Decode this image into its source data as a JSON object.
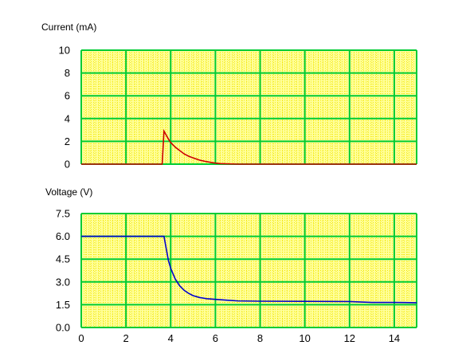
{
  "chart_data": [
    {
      "type": "line",
      "ylabel": "Current (mA)",
      "xlim": [
        0,
        15
      ],
      "ylim": [
        0,
        10
      ],
      "xticks": [
        0,
        2,
        4,
        6,
        8,
        10,
        12,
        14
      ],
      "yticks": [
        "0",
        "2",
        "4",
        "6",
        "8",
        "10"
      ],
      "grid": true,
      "series": [
        {
          "color": "#cc0000",
          "x": [
            0,
            3.62,
            3.7,
            3.8,
            3.9,
            4.0,
            4.2,
            4.4,
            4.6,
            4.8,
            5.0,
            5.3,
            5.6,
            5.9,
            6.2,
            7.0,
            10.0,
            15.0
          ],
          "y": [
            0,
            0,
            2.9,
            2.55,
            2.2,
            1.9,
            1.5,
            1.2,
            0.9,
            0.7,
            0.55,
            0.35,
            0.22,
            0.12,
            0.05,
            0,
            0,
            0
          ]
        }
      ]
    },
    {
      "type": "line",
      "ylabel": "Voltage (V)",
      "xlim": [
        0,
        15
      ],
      "ylim": [
        0,
        7.5
      ],
      "xticks": [
        "0",
        "2",
        "4",
        "6",
        "8",
        "10",
        "12",
        "14"
      ],
      "yticks": [
        "0.0",
        "1.5",
        "3.0",
        "4.5",
        "6.0",
        "7.5"
      ],
      "grid": true,
      "series": [
        {
          "color": "#0000cc",
          "x": [
            0,
            3.7,
            3.8,
            3.9,
            4.0,
            4.2,
            4.4,
            4.6,
            4.8,
            5.0,
            5.3,
            5.6,
            6.0,
            6.5,
            7.0,
            8.0,
            10.0,
            12.0,
            13.0,
            14.0,
            15.0
          ],
          "y": [
            6.0,
            6.0,
            5.2,
            4.4,
            3.9,
            3.2,
            2.75,
            2.45,
            2.25,
            2.1,
            1.97,
            1.9,
            1.85,
            1.8,
            1.75,
            1.73,
            1.72,
            1.71,
            1.65,
            1.65,
            1.63
          ]
        }
      ]
    }
  ]
}
